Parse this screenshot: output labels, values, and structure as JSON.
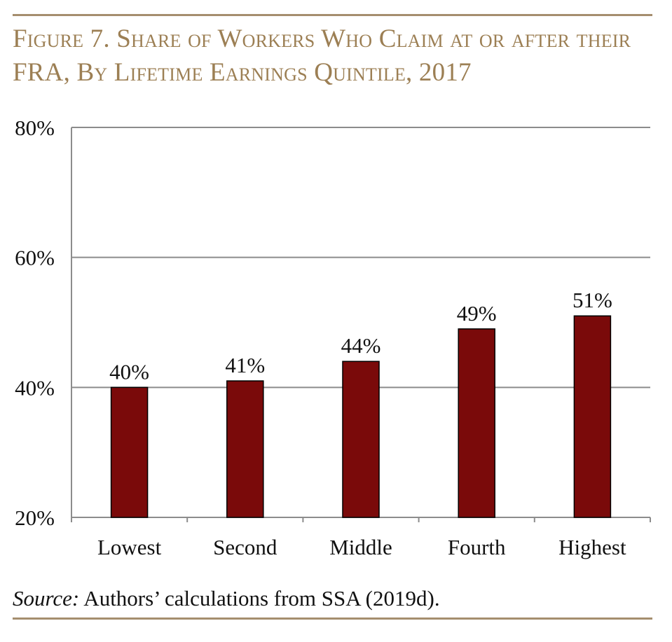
{
  "figure": {
    "title": "Figure 7. Share of Workers Who Claim at or after their FRA, By Lifetime Earnings Quintile, 2017",
    "source_label": "Source:",
    "source_text": " Authors’ calculations from SSA (2019d)."
  },
  "colors": {
    "bar": "#7a0a0a",
    "title": "#9c7f54",
    "rule": "#a58e6e"
  },
  "chart_data": {
    "type": "bar",
    "title": "Figure 7. Share of Workers Who Claim at or after their FRA, By Lifetime Earnings Quintile, 2017",
    "categories": [
      "Lowest",
      "Second",
      "Middle",
      "Fourth",
      "Highest"
    ],
    "values": [
      40,
      41,
      44,
      49,
      51
    ],
    "data_labels": [
      "40%",
      "41%",
      "44%",
      "49%",
      "51%"
    ],
    "ylim": [
      20,
      80
    ],
    "yticks": [
      20,
      40,
      60,
      80
    ],
    "ytick_labels": [
      "20%",
      "40%",
      "60%",
      "80%"
    ],
    "xlabel": "",
    "ylabel": "",
    "grid": true,
    "legend": "none"
  }
}
